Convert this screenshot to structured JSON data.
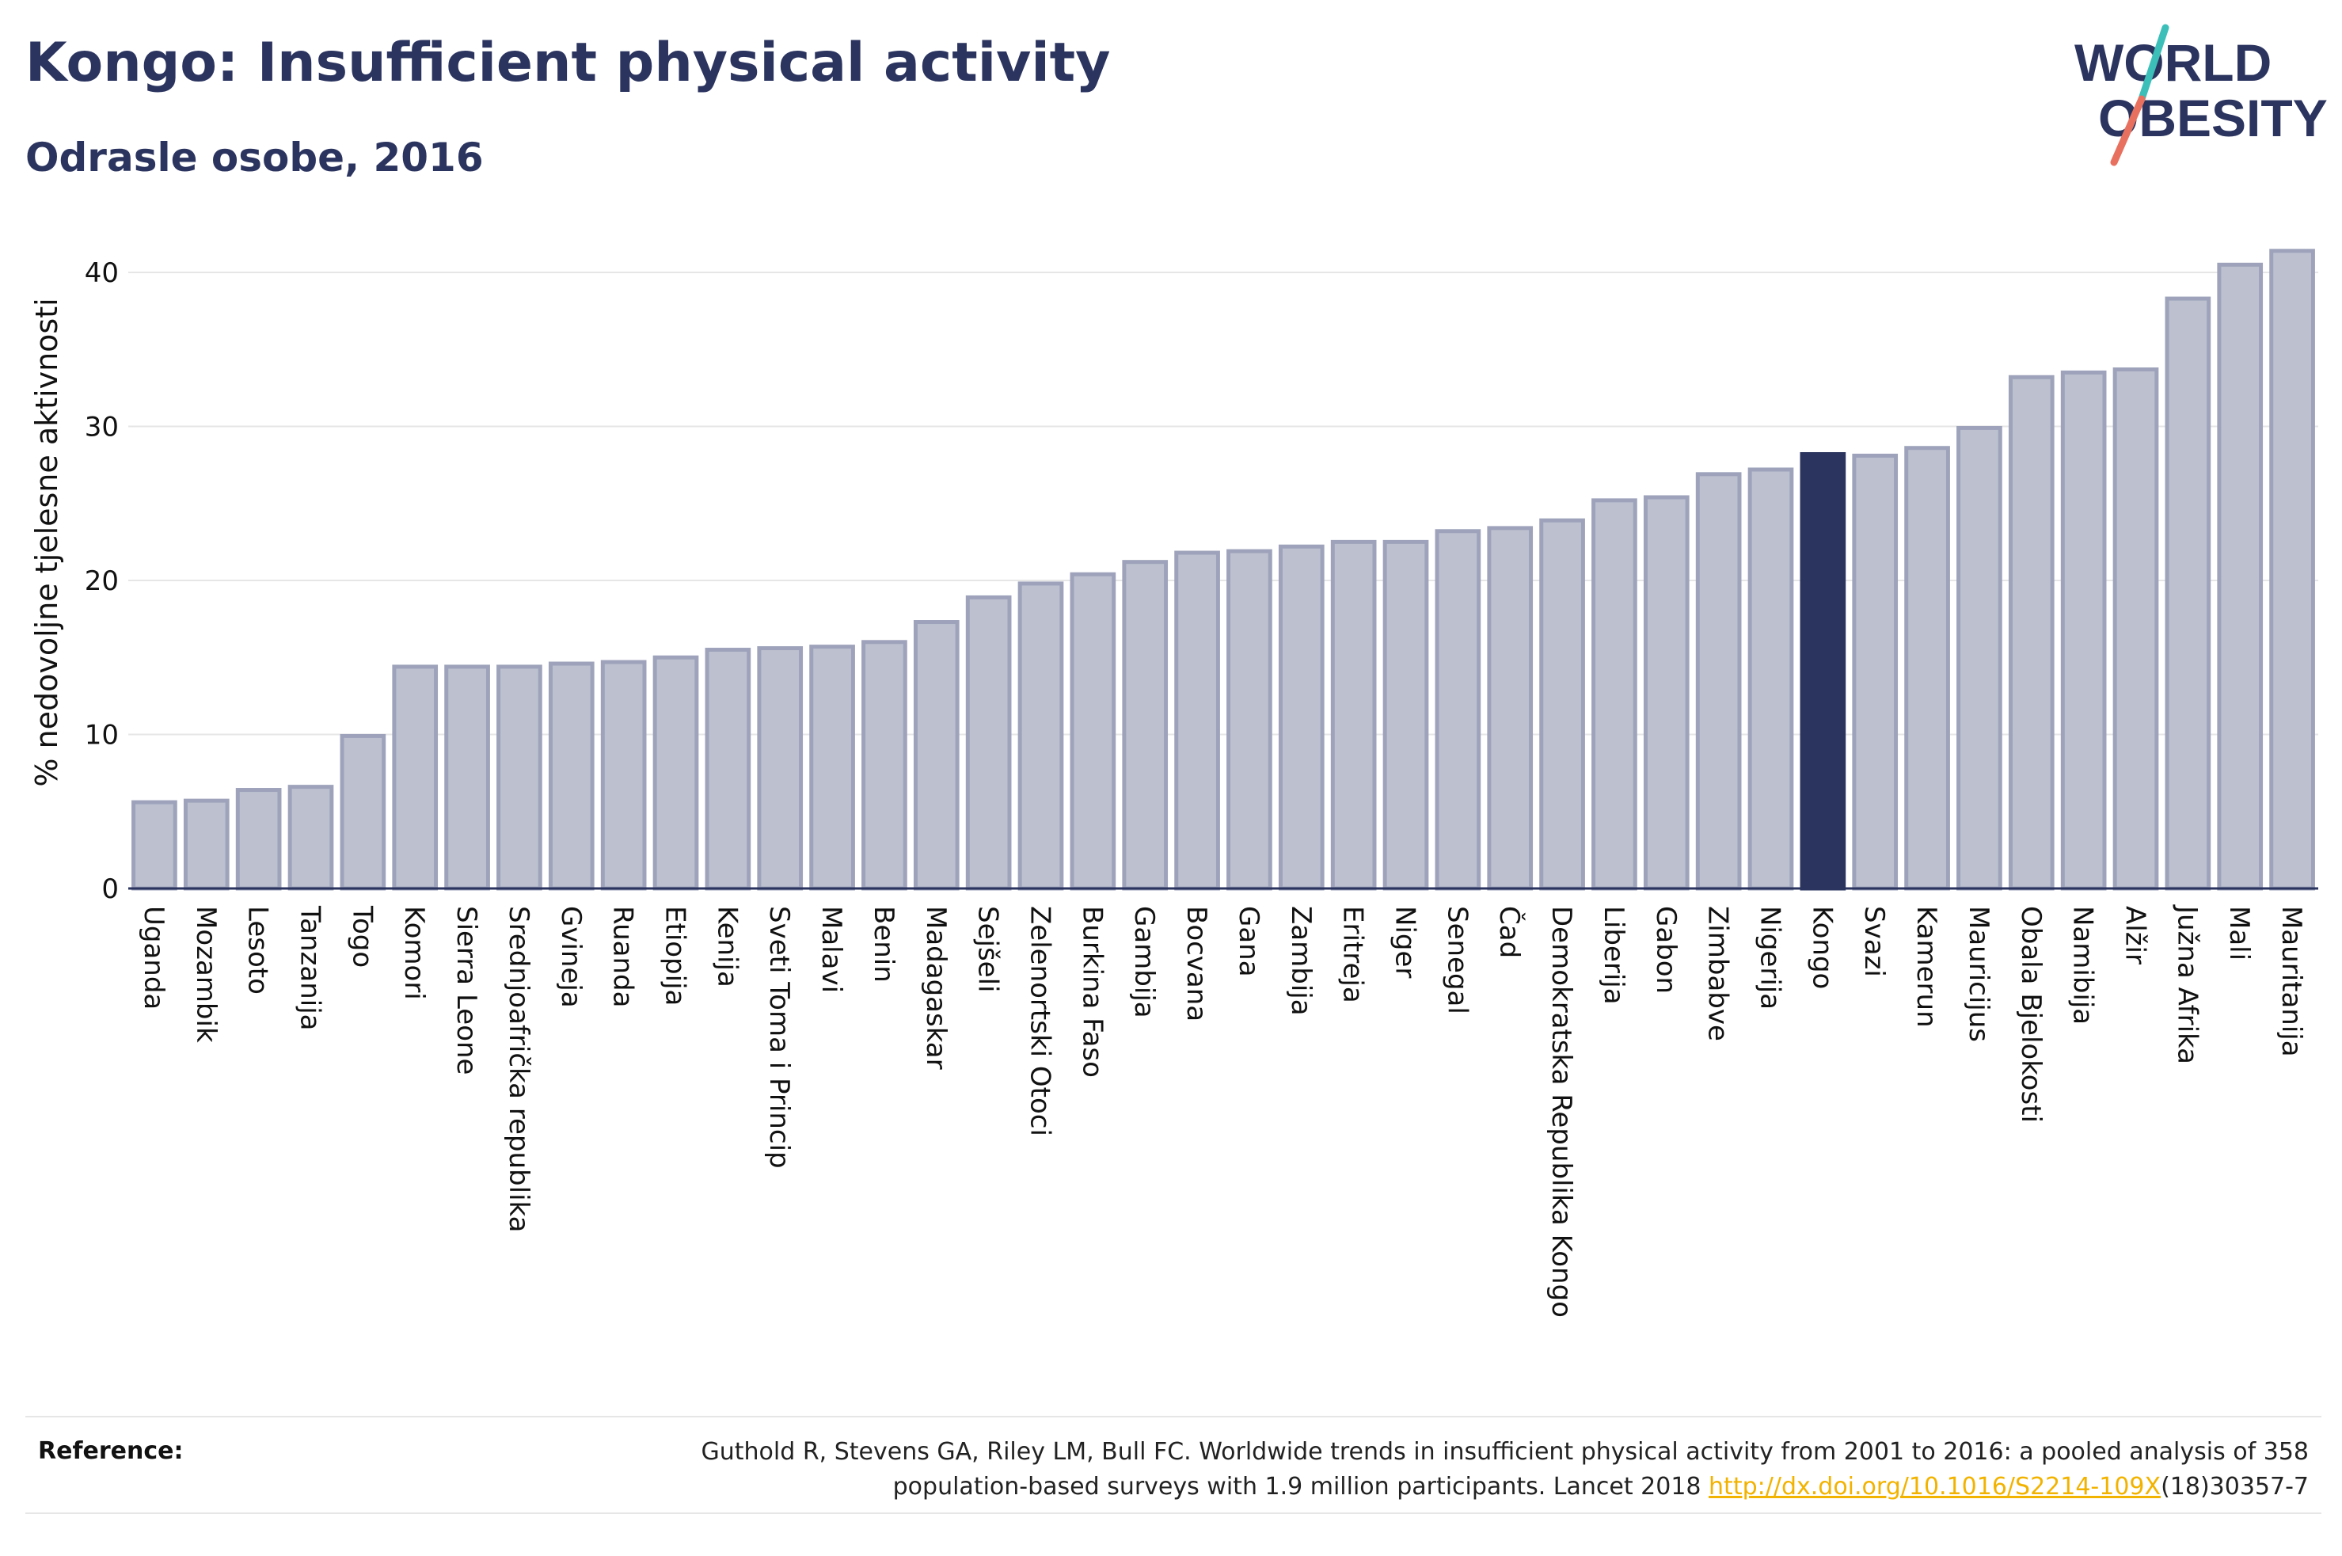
{
  "header": {
    "title": "Kongo: Insufficient physical activity",
    "subtitle": "Odrasle osobe, 2016"
  },
  "logo": {
    "line1": "WORLD",
    "line2": "OBESITY",
    "accent_teal": "#3bbfb8",
    "accent_coral": "#e8705f"
  },
  "colors": {
    "bar_fill": "#bcc0cf",
    "bar_stroke": "#9ea3bb",
    "highlight": "#2b345f",
    "grid": "#e6e6e6",
    "axis": "#2b345f"
  },
  "chart_data": {
    "type": "bar",
    "ylabel": "% nedovoljne tjelesne aktivnosti",
    "ylim": [
      0,
      43
    ],
    "yticks": [
      0,
      10,
      20,
      30,
      40
    ],
    "grid": true,
    "highlight": "Kongo",
    "categories": [
      "Uganda",
      "Mozambik",
      "Lesoto",
      "Tanzanija",
      "Togo",
      "Komori",
      "Sierra Leone",
      "Srednjoafrička republika",
      "Gvineja",
      "Ruanda",
      "Etiopija",
      "Kenija",
      "Sveti Toma i Princip",
      "Malavi",
      "Benin",
      "Madagaskar",
      "Sejšeli",
      "Zelenortski Otoci",
      "Burkina Faso",
      "Gambija",
      "Bocvana",
      "Gana",
      "Zambija",
      "Eritreja",
      "Niger",
      "Senegal",
      "Čad",
      "Demokratska Republika Kongo",
      "Liberija",
      "Gabon",
      "Zimbabve",
      "Nigerija",
      "Kongo",
      "Svazi",
      "Kamerun",
      "Mauricijus",
      "Obala Bjelokosti",
      "Namibija",
      "Alžir",
      "Južna Afrika",
      "Mali",
      "Mauritanija"
    ],
    "values": [
      5.6,
      5.7,
      6.4,
      6.6,
      9.9,
      14.4,
      14.4,
      14.4,
      14.6,
      14.7,
      15.0,
      15.5,
      15.6,
      15.7,
      16.0,
      17.3,
      18.9,
      19.8,
      20.4,
      21.2,
      21.8,
      21.9,
      22.2,
      22.5,
      22.5,
      23.2,
      23.4,
      23.9,
      25.2,
      25.4,
      26.9,
      27.2,
      28.2,
      28.1,
      28.6,
      29.9,
      33.2,
      33.5,
      33.7,
      38.3,
      40.5,
      41.4
    ]
  },
  "reference": {
    "label": "Reference:",
    "text_line1": "Guthold R, Stevens GA, Riley LM, Bull FC. Worldwide trends in insufficient physical activity from 2001 to 2016: a pooled analysis of 358",
    "text_line2_before": "population-based surveys with 1.9 million participants. Lancet 2018 ",
    "link_text": "http://dx.doi.org/10.1016/S2214-109X",
    "text_line2_after": "(18)30357-7"
  }
}
